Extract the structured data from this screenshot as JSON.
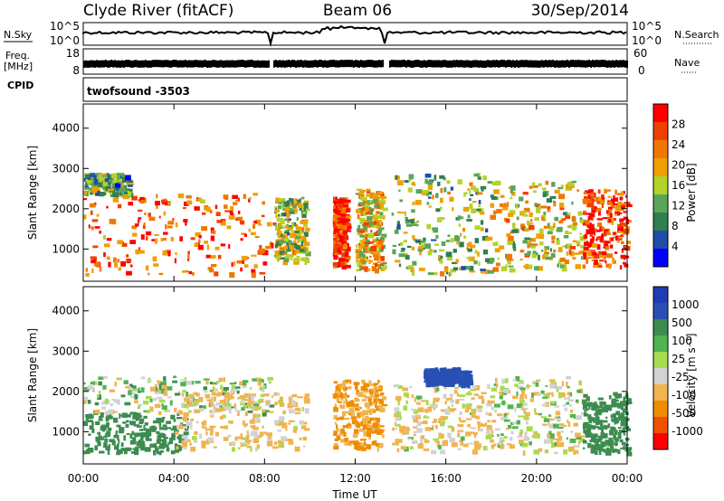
{
  "header": {
    "station": "Clyde River (fitACF)",
    "beam": "Beam 06",
    "date": "30/Sep/2014"
  },
  "ancillary": {
    "nsky_label": "N.Sky",
    "nsky_ticks": [
      "10^5",
      "10^0"
    ],
    "nsearch_label": "N.Search",
    "nsearch_ticks": [
      "10^5",
      "10^0"
    ],
    "freq_label": "Freq.",
    "freq_unit": "[MHz]",
    "freq_ticks": [
      "18",
      "8"
    ],
    "nave_label": "Nave",
    "nave_ticks": [
      "60",
      "0"
    ],
    "cpid_label": "CPID",
    "cpid_value": "twofsound -3503"
  },
  "colors": {
    "power_scale": [
      "#0000ff",
      "#1f4fa5",
      "#2f7f4f",
      "#5aa55a",
      "#b4d22a",
      "#f0a000",
      "#f07800",
      "#f04000",
      "#ff0000"
    ],
    "velocity_scale": [
      "#ff0000",
      "#f05000",
      "#f08c00",
      "#f0b450",
      "#d2d2d2",
      "#a8dc50",
      "#50b450",
      "#3c8c50",
      "#2850b4",
      "#1e3cb4"
    ]
  },
  "chart_data": [
    {
      "type": "heatmap",
      "name": "power",
      "ylabel": "Slant Range [km]",
      "ylim": [
        200,
        4600
      ],
      "yticks": [
        1000,
        2000,
        3000,
        4000
      ],
      "xlim": [
        0,
        24
      ],
      "colorbar": {
        "label": "Power [dB]",
        "ticks": [
          "28",
          "24",
          "20",
          "16",
          "12",
          "8",
          "4"
        ],
        "range": [
          0,
          32
        ]
      },
      "echo_regions": [
        {
          "t0": 0.0,
          "t1": 8.4,
          "r0": 400,
          "r1": 2400,
          "level": 0.8
        },
        {
          "t0": 0.0,
          "t1": 2.0,
          "r0": 2400,
          "r1": 2900,
          "level": 0.35
        },
        {
          "t0": 8.4,
          "t1": 9.8,
          "r0": 700,
          "r1": 2300,
          "level": 0.45
        },
        {
          "t0": 11.0,
          "t1": 11.6,
          "r0": 600,
          "r1": 2300,
          "level": 0.9
        },
        {
          "t0": 12.0,
          "t1": 13.2,
          "r0": 500,
          "r1": 2500,
          "level": 0.6
        },
        {
          "t0": 13.6,
          "t1": 18.0,
          "r0": 400,
          "r1": 2900,
          "level": 0.45
        },
        {
          "t0": 18.0,
          "t1": 22.0,
          "r0": 500,
          "r1": 2700,
          "level": 0.55
        },
        {
          "t0": 22.0,
          "t1": 24.0,
          "r0": 600,
          "r1": 2500,
          "level": 0.85
        }
      ]
    },
    {
      "type": "heatmap",
      "name": "velocity",
      "ylabel": "Slant Range [km]",
      "xlabel": "Time UT",
      "ylim": [
        200,
        4600
      ],
      "yticks": [
        1000,
        2000,
        3000,
        4000
      ],
      "xlim": [
        0,
        24
      ],
      "xticks": [
        "00:00",
        "04:00",
        "08:00",
        "12:00",
        "16:00",
        "20:00",
        "00:00"
      ],
      "colorbar": {
        "label": "Velocity [m s⁻¹]",
        "ticks": [
          "1000",
          "500",
          "100",
          "25",
          "-25",
          "-100",
          "-500",
          "-1000"
        ],
        "range": [
          -1000,
          1000
        ]
      },
      "echo_regions": [
        {
          "t0": 0.0,
          "t1": 4.5,
          "r0": 500,
          "r1": 1500,
          "velocity": 250
        },
        {
          "t0": 0.0,
          "t1": 8.4,
          "r0": 1500,
          "r1": 2400,
          "velocity": 0
        },
        {
          "t0": 4.0,
          "t1": 9.8,
          "r0": 600,
          "r1": 2000,
          "velocity": -150
        },
        {
          "t0": 11.0,
          "t1": 13.2,
          "r0": 600,
          "r1": 2300,
          "velocity": -500
        },
        {
          "t0": 13.6,
          "t1": 18.0,
          "r0": 500,
          "r1": 2200,
          "velocity": -100
        },
        {
          "t0": 15.0,
          "t1": 17.0,
          "r0": 2200,
          "r1": 2600,
          "velocity": 700
        },
        {
          "t0": 18.0,
          "t1": 22.0,
          "r0": 500,
          "r1": 2400,
          "velocity": -50
        },
        {
          "t0": 22.0,
          "t1": 24.0,
          "r0": 500,
          "r1": 2000,
          "velocity": 300
        }
      ]
    }
  ]
}
